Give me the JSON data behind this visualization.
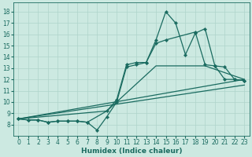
{
  "xlabel": "Humidex (Indice chaleur)",
  "xlim": [
    -0.5,
    23.5
  ],
  "ylim": [
    7.0,
    18.8
  ],
  "xticks": [
    0,
    1,
    2,
    3,
    4,
    5,
    6,
    7,
    8,
    9,
    10,
    11,
    12,
    13,
    14,
    15,
    16,
    17,
    18,
    19,
    20,
    21,
    22,
    23
  ],
  "yticks": [
    8,
    9,
    10,
    11,
    12,
    13,
    14,
    15,
    16,
    17,
    18
  ],
  "bg_color": "#cce9e1",
  "grid_color": "#afd4cb",
  "line_color": "#1a6b60",
  "line1_x": [
    0,
    1,
    2,
    3,
    4,
    5,
    6,
    7,
    8,
    9,
    10,
    11,
    12,
    13,
    14,
    15,
    16,
    17,
    18,
    19,
    20,
    21,
    22,
    23
  ],
  "line1_y": [
    8.5,
    8.4,
    8.4,
    8.2,
    8.3,
    8.3,
    8.3,
    8.2,
    7.5,
    8.7,
    10.0,
    13.1,
    13.3,
    13.5,
    15.5,
    18.0,
    17.0,
    14.2,
    16.1,
    16.5,
    13.2,
    13.1,
    12.0,
    11.9
  ],
  "line2_x": [
    0,
    1,
    2,
    3,
    4,
    5,
    6,
    7,
    9,
    10,
    11,
    12,
    13,
    14,
    15,
    18,
    19,
    20,
    21,
    22,
    23
  ],
  "line2_y": [
    8.5,
    8.4,
    8.4,
    8.2,
    8.3,
    8.3,
    8.3,
    8.2,
    9.2,
    10.2,
    13.3,
    13.5,
    13.5,
    15.2,
    15.5,
    16.2,
    13.3,
    13.2,
    12.0,
    12.0,
    11.9
  ],
  "line3_x": [
    0,
    9,
    14,
    19,
    23
  ],
  "line3_y": [
    8.5,
    9.2,
    13.2,
    13.2,
    12.0
  ],
  "line4_x": [
    0,
    23
  ],
  "line4_y": [
    8.5,
    12.0
  ],
  "line5_x": [
    0,
    23
  ],
  "line5_y": [
    8.5,
    11.5
  ],
  "fontsize_tick": 5.5,
  "fontsize_label": 6.5,
  "lw": 0.9,
  "ms": 2.2
}
